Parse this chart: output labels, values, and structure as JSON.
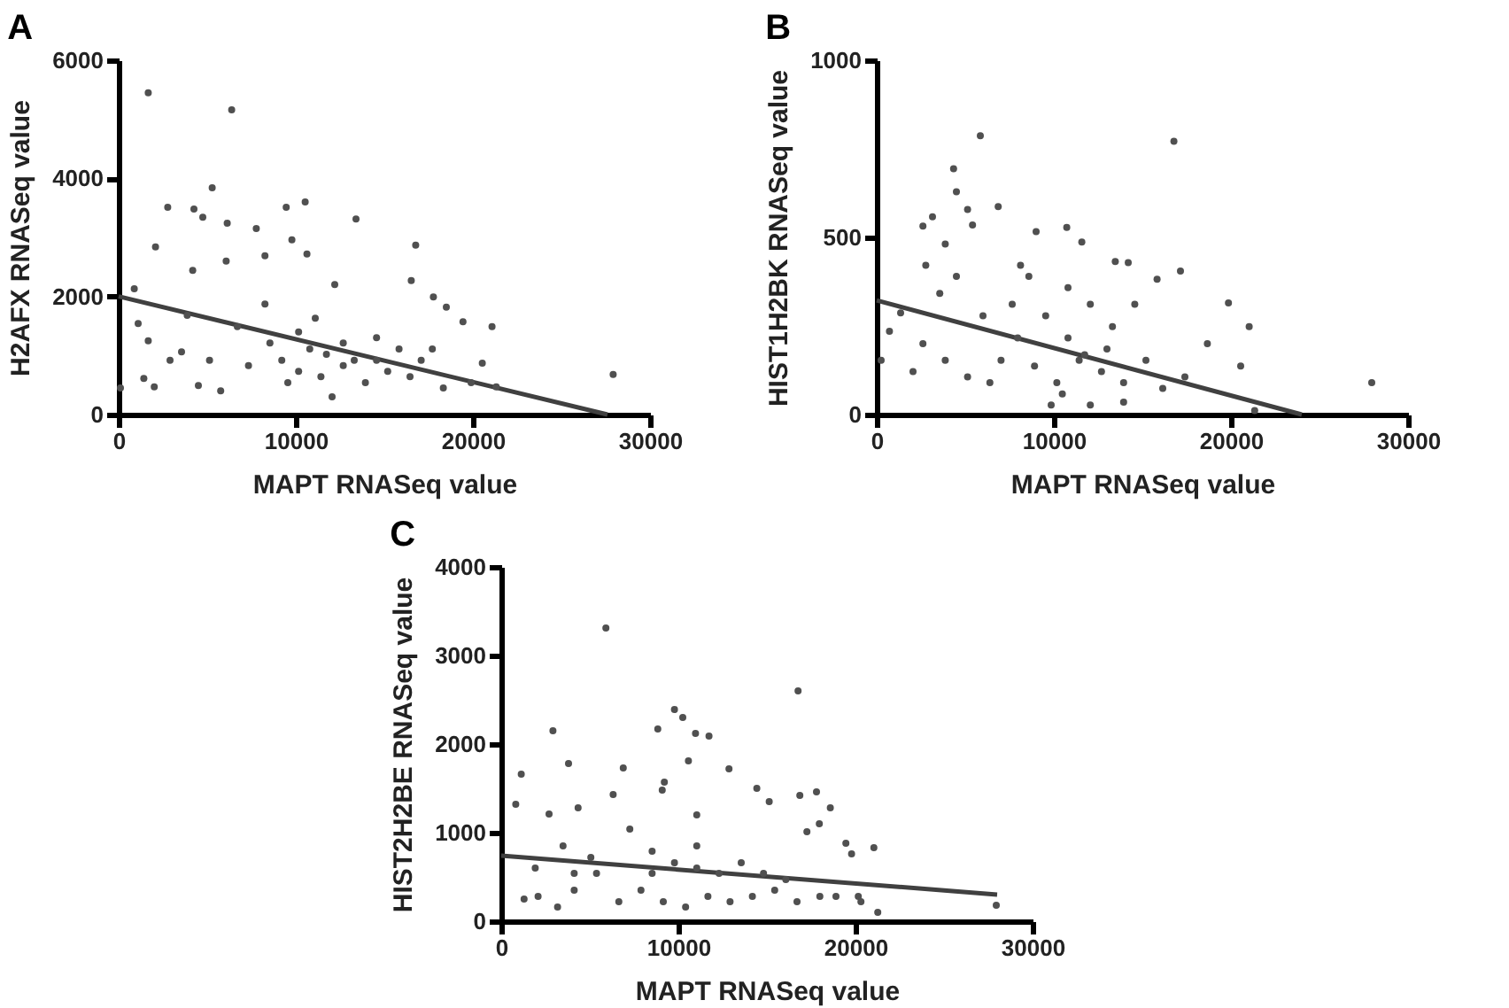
{
  "chart_data": [
    {
      "type": "scatter",
      "title": "A",
      "xlabel": "MAPT RNASeq value",
      "ylabel": "H2AFX RNASeq value",
      "xlim": [
        0,
        30000
      ],
      "xticks": [
        0,
        10000,
        20000,
        30000
      ],
      "ylim": [
        0,
        6000
      ],
      "yticks": [
        0,
        2000,
        4000,
        6000
      ],
      "series": [
        {
          "marker": "circle",
          "color": "#505050",
          "x": [
            1670,
            6380,
            5280,
            10530,
            9460,
            13400,
            2770,
            4250,
            4750,
            6130,
            7770,
            2080,
            16770,
            9780,
            10630,
            8260,
            4180,
            6070,
            16520,
            880,
            12200,
            17770,
            18500,
            19440,
            21080,
            1100,
            1670,
            3550,
            1420,
            2010,
            4500,
            5760,
            7330,
            9210,
            11420,
            12050,
            13930,
            15190,
            16450,
            18330,
            19900,
            20530,
            21320,
            27920,
            100,
            6700,
            8260,
            10160,
            10790,
            11730,
            12680,
            13300,
            14560,
            8540,
            10160,
            12680,
            14560,
            15830,
            17080,
            5130,
            3870,
            2900,
            17710,
            11100,
            9550
          ],
          "values": [
            5450,
            5160,
            3840,
            3600,
            3510,
            3310,
            3510,
            3480,
            3340,
            3240,
            3150,
            2840,
            2870,
            2960,
            2720,
            2690,
            2440,
            2600,
            2270,
            2130,
            2200,
            1990,
            1820,
            1570,
            1490,
            1540,
            1250,
            1060,
            610,
            470,
            490,
            400,
            830,
            920,
            640,
            300,
            540,
            730,
            640,
            450,
            540,
            870,
            470,
            680,
            450,
            1490,
            1870,
            1400,
            1110,
            1020,
            1210,
            920,
            920,
            1210,
            730,
            830,
            1300,
            1110,
            920,
            920,
            1680,
            920,
            1110,
            1630,
            540
          ]
        },
        {
          "type": "line",
          "color": "#404040",
          "x": [
            0,
            27600
          ],
          "values": [
            2000,
            0
          ]
        }
      ]
    },
    {
      "type": "scatter",
      "title": "B",
      "xlabel": "MAPT RNASeq value",
      "ylabel": "HIST1H2BK RNASeq value",
      "xlim": [
        0,
        30000
      ],
      "xticks": [
        0,
        10000,
        20000,
        30000
      ],
      "ylim": [
        0,
        1000
      ],
      "yticks": [
        0,
        500,
        1000
      ],
      "series": [
        {
          "marker": "circle",
          "color": "#505050",
          "x": [
            5850,
            16780,
            4340,
            4500,
            3150,
            5130,
            6860,
            2610,
            5410,
            10730,
            9000,
            11580,
            3870,
            2770,
            8120,
            13470,
            14200,
            17150,
            15830,
            19860,
            21030,
            720,
            1350,
            250,
            2050,
            27950,
            21340,
            20550,
            18670,
            17400,
            16150,
            15200,
            13940,
            12690,
            11430,
            10170,
            8910,
            7960,
            7020,
            6390,
            5130,
            3870,
            2610,
            6000,
            7650,
            9540,
            10800,
            12060,
            13310,
            14570,
            10800,
            11740,
            13000,
            10480,
            12060,
            13940,
            9850,
            4500,
            3560,
            8590
          ],
          "values": [
            787,
            771,
            694,
            629,
            558,
            579,
            587,
            532,
            535,
            528,
            516,
            487,
            481,
            421,
            421,
            432,
            429,
            405,
            382,
            315,
            248,
            235,
            287,
            153,
            121,
            90,
            11,
            137,
            200,
            106,
            74,
            153,
            90,
            121,
            153,
            90,
            137,
            216,
            153,
            90,
            106,
            153,
            200,
            279,
            311,
            279,
            358,
            311,
            248,
            311,
            216,
            169,
            185,
            58,
            27,
            35,
            27,
            390,
            342,
            390
          ]
        },
        {
          "type": "line",
          "color": "#404040",
          "x": [
            0,
            24000
          ],
          "values": [
            322,
            0
          ]
        }
      ]
    },
    {
      "type": "scatter",
      "title": "C",
      "xlabel": "MAPT RNASeq value",
      "ylabel": "HIST2H2BE RNASeq value",
      "xlim": [
        0,
        30000
      ],
      "xticks": [
        0,
        10000,
        20000,
        30000
      ],
      "ylim": [
        0,
        4000
      ],
      "yticks": [
        0,
        1000,
        2000,
        3000,
        4000
      ],
      "series": [
        {
          "marker": "circle",
          "color": "#505050",
          "x": [
            5910,
            16760,
            2920,
            9780,
            10250,
            8840,
            10970,
            11730,
            1130,
            3800,
            6890,
            12860,
            10570,
            9210,
            14430,
            17800,
            16860,
            9090,
            6320,
            18580,
            820,
            2700,
            4340,
            11040,
            15130,
            19460,
            19780,
            21040,
            21260,
            27950,
            17260,
            17960,
            1290,
            2080,
            3180,
            4120,
            5380,
            6640,
            7890,
            9150,
            10410,
            11670,
            12920,
            14180,
            15440,
            16700,
            17990,
            18900,
            20160,
            20310,
            1920,
            3490,
            5060,
            7260,
            8520,
            9780,
            11040,
            12300,
            13550,
            14810,
            16070,
            11040,
            8520,
            4120
          ],
          "values": [
            3310,
            2600,
            2150,
            2390,
            2300,
            2170,
            2120,
            2090,
            1660,
            1780,
            1730,
            1720,
            1810,
            1570,
            1500,
            1460,
            1420,
            1480,
            1430,
            1280,
            1320,
            1210,
            1280,
            1200,
            1350,
            880,
            760,
            830,
            100,
            180,
            1010,
            1100,
            250,
            280,
            160,
            350,
            540,
            220,
            350,
            220,
            160,
            280,
            220,
            280,
            350,
            220,
            280,
            280,
            280,
            220,
            600,
            850,
            720,
            1040,
            790,
            660,
            600,
            540,
            660,
            540,
            470,
            850,
            540,
            540
          ]
        },
        {
          "type": "line",
          "color": "#404040",
          "x": [
            0,
            28000
          ],
          "values": [
            740,
            300
          ]
        }
      ]
    }
  ]
}
